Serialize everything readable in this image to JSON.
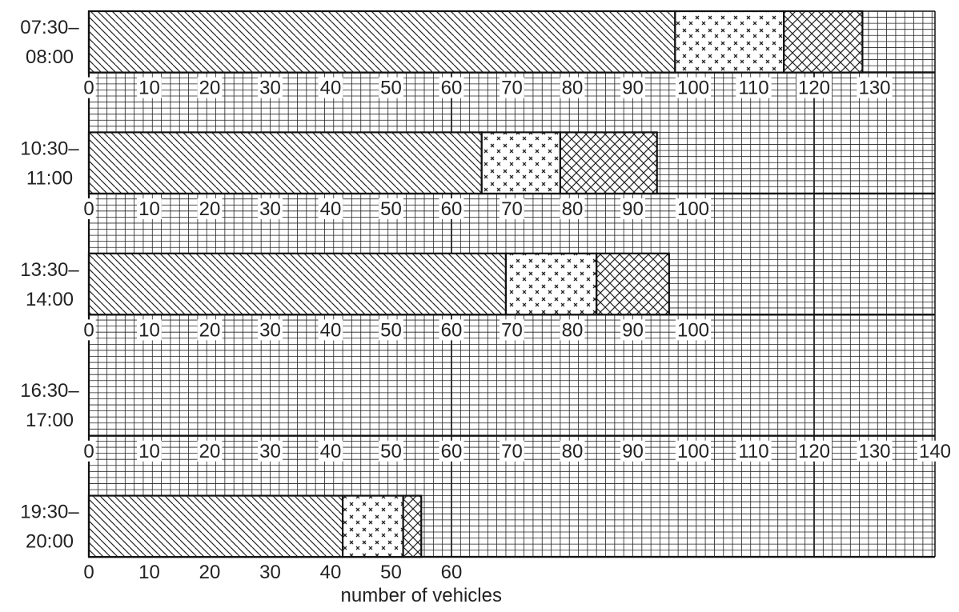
{
  "chart_data": {
    "type": "bar",
    "orientation": "horizontal",
    "stacked": true,
    "xlabel": "number of vehicles",
    "grid": true,
    "segment_patterns": [
      "diagonal",
      "crosses",
      "crosshatch"
    ],
    "rows": [
      {
        "time_start": "07:30–",
        "time_end": "08:00",
        "segments": [
          97,
          18,
          13
        ],
        "ticks": [
          "0",
          "10",
          "20",
          "30",
          "40",
          "50",
          "60",
          "70",
          "80",
          "90",
          "100",
          "110",
          "120",
          "130"
        ]
      },
      {
        "time_start": "10:30–",
        "time_end": "11:00",
        "segments": [
          65,
          13,
          16
        ],
        "ticks": [
          "0",
          "10",
          "20",
          "30",
          "40",
          "50",
          "60",
          "70",
          "80",
          "90",
          "100"
        ]
      },
      {
        "time_start": "13:30–",
        "time_end": "14:00",
        "segments": [
          69,
          15,
          12
        ],
        "ticks": [
          "0",
          "10",
          "20",
          "30",
          "40",
          "50",
          "60",
          "70",
          "80",
          "90",
          "100"
        ]
      },
      {
        "time_start": "16:30–",
        "time_end": "17:00",
        "segments": [],
        "ticks": [
          "0",
          "10",
          "20",
          "30",
          "40",
          "50",
          "60",
          "70",
          "80",
          "90",
          "100",
          "110",
          "120",
          "130",
          "140"
        ]
      },
      {
        "time_start": "19:30–",
        "time_end": "20:00",
        "segments": [
          42,
          10,
          3
        ],
        "ticks": [
          "0",
          "10",
          "20",
          "30",
          "40",
          "50",
          "60"
        ]
      }
    ]
  }
}
